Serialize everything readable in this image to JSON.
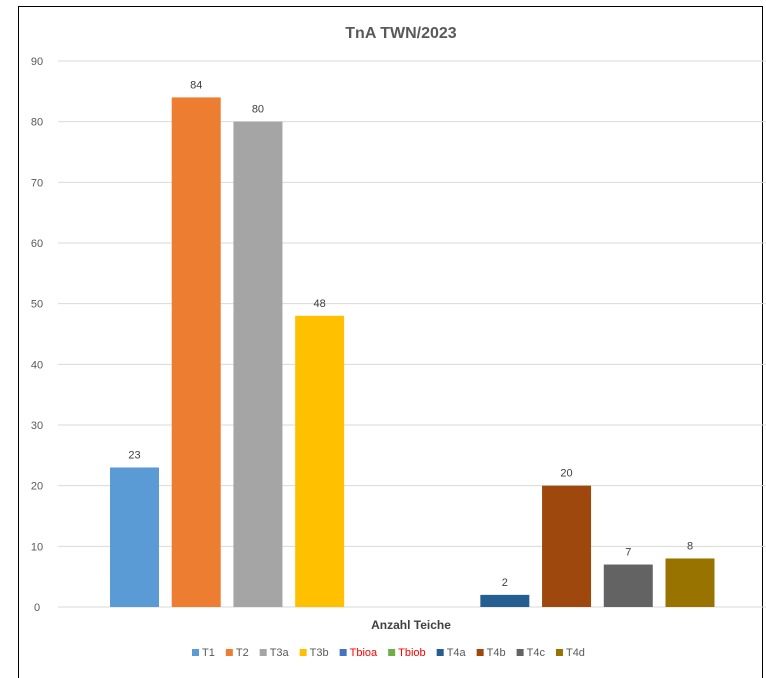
{
  "chart_data": {
    "type": "bar",
    "title": "TnA TWN/2023",
    "xlabel": "Anzahl Teiche",
    "ylabel": "",
    "ylim": [
      0,
      90
    ],
    "yticks": [
      0,
      10,
      20,
      30,
      40,
      50,
      60,
      70,
      80,
      90
    ],
    "grid": true,
    "legend_position": "bottom",
    "series": [
      {
        "name": "T1",
        "value": 23,
        "color": "#5b9bd5",
        "label_color": "#595959"
      },
      {
        "name": "T2",
        "value": 84,
        "color": "#ed7d31",
        "label_color": "#595959"
      },
      {
        "name": "T3a",
        "value": 80,
        "color": "#a5a5a5",
        "label_color": "#595959"
      },
      {
        "name": "T3b",
        "value": 48,
        "color": "#ffc000",
        "label_color": "#595959"
      },
      {
        "name": "Tbioa",
        "value": null,
        "color": "#4472c4",
        "label_color": "#ff0000"
      },
      {
        "name": "Tbiob",
        "value": null,
        "color": "#70ad47",
        "label_color": "#ff0000"
      },
      {
        "name": "T4a",
        "value": 2,
        "color": "#255e91",
        "label_color": "#595959"
      },
      {
        "name": "T4b",
        "value": 20,
        "color": "#9e480e",
        "label_color": "#595959"
      },
      {
        "name": "T4c",
        "value": 7,
        "color": "#636363",
        "label_color": "#595959"
      },
      {
        "name": "T4d",
        "value": 8,
        "color": "#997300",
        "label_color": "#595959"
      }
    ]
  }
}
